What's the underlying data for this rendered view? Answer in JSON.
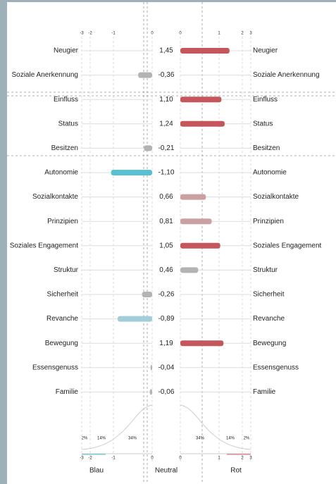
{
  "chart_data": {
    "type": "diverging-bar",
    "categories": [
      "Neugier",
      "Soziale Anerkennung",
      "Einfluss",
      "Status",
      "Besitzen",
      "Autonomie",
      "Sozialkontakte",
      "Prinzipien",
      "Soziales Engagement",
      "Struktur",
      "Sicherheit",
      "Revanche",
      "Bewegung",
      "Essensgenuss",
      "Familie"
    ],
    "values": [
      1.45,
      -0.36,
      1.1,
      1.24,
      -0.21,
      -1.1,
      0.66,
      0.81,
      1.05,
      0.46,
      -0.26,
      -0.89,
      1.19,
      -0.04,
      -0.06
    ],
    "value_labels": [
      "1,45",
      "-0,36",
      "1,10",
      "1,24",
      "-0,21",
      "-1,10",
      "0,66",
      "0,81",
      "1,05",
      "0,46",
      "-0,26",
      "-0,89",
      "1,19",
      "-0,04",
      "-0,06"
    ],
    "colors": [
      "#c4565c",
      "#b3b3b3",
      "#c4565c",
      "#c4565c",
      "#b3b3b3",
      "#57c0d3",
      "#caa0a3",
      "#caa0a3",
      "#c4565c",
      "#b3b3b3",
      "#b3b3b3",
      "#a3cdd9",
      "#c4565c",
      "#b3b3b3",
      "#b3b3b3"
    ],
    "xticks_left": [
      -3,
      -2,
      -1,
      0
    ],
    "xticks_right": [
      0,
      1,
      2,
      3
    ],
    "percent_labels": [
      "2%",
      "14%",
      "34%"
    ],
    "left_label": "Blau",
    "center_label": "Neutral",
    "right_label": "Rot",
    "left_color": "#57c0d3",
    "right_color": "#d2686e"
  }
}
